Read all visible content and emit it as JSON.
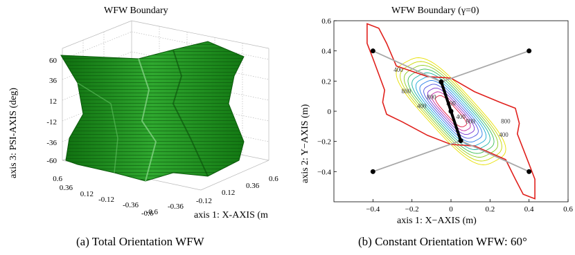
{
  "chart_data": [
    {
      "type": "scatter",
      "subtype": "3d-surface",
      "title": "WFW Boundary",
      "caption": "(a) Total Orientation WFW",
      "xlabel": "axis 1: X-AXIS (m",
      "zlabel": "axis 3: PSI-AXIS (deg)",
      "x_ticks": [
        "-0.6",
        "-0.36",
        "-0.12",
        "0.12",
        "0.36",
        "0.6"
      ],
      "y_ticks": [
        "-0.6",
        "-0.36",
        "-0.12",
        "0.12",
        "0.36",
        "0.6"
      ],
      "z_ticks": [
        "-60",
        "-36",
        "-12",
        "12",
        "36",
        "60"
      ],
      "grid": true,
      "color": "#1e8c1e"
    },
    {
      "type": "line",
      "subtype": "contour",
      "title": "WFW Boundary (γ=0)",
      "caption": "(b) Constant Orientation WFW: 60°",
      "xlabel": "axis 1: X−AXIS (m)",
      "ylabel": "axis 2: Y−AXIS (m)",
      "xlim": [
        -0.6,
        0.6
      ],
      "ylim": [
        -0.6,
        0.6
      ],
      "x_ticks": [
        "−0.4",
        "−0.2",
        "0",
        "0.2",
        "0.4",
        "0.6"
      ],
      "y_ticks": [
        "−0.4",
        "−0.2",
        "0",
        "0.2",
        "0.4",
        "0.6"
      ],
      "contour_labels": [
        "400",
        "800",
        "800",
        "400",
        "800",
        "800",
        "400",
        "800",
        "400"
      ],
      "base_points": [
        {
          "x": -0.4,
          "y": 0.4
        },
        {
          "x": 0.4,
          "y": 0.4
        },
        {
          "x": -0.4,
          "y": -0.4
        },
        {
          "x": 0.4,
          "y": -0.4
        }
      ],
      "platform_points": [
        {
          "x": -0.05,
          "y": 0.195
        },
        {
          "x": 0.0,
          "y": 0.0
        },
        {
          "x": 0.05,
          "y": -0.195
        }
      ],
      "colors": {
        "boundary": "#e0201c",
        "legs": "#a8a8a8",
        "platform": "#000000"
      }
    }
  ]
}
